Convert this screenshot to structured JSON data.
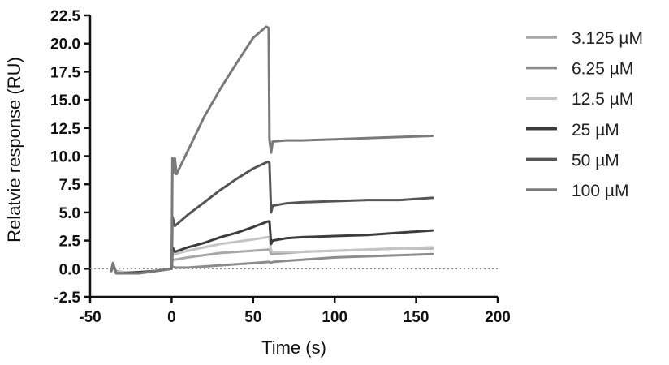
{
  "chart_data": {
    "type": "line",
    "title": "",
    "xlabel": "Time (s)",
    "ylabel": "Relatvie response (RU)",
    "xlim": [
      -50,
      200
    ],
    "ylim": [
      -2.5,
      22.5
    ],
    "xticks": [
      -50,
      0,
      50,
      100,
      150,
      200
    ],
    "yticks": [
      -2.5,
      0.0,
      2.5,
      5.0,
      7.5,
      10.0,
      12.5,
      15.0,
      17.5,
      20.0,
      22.5
    ],
    "xtick_labels": [
      "-50",
      "0",
      "50",
      "100",
      "150",
      "200"
    ],
    "ytick_labels": [
      "-2.5",
      "0.0",
      "2.5",
      "5.0",
      "7.5",
      "10.0",
      "12.5",
      "15.0",
      "17.5",
      "20.0",
      "22.5"
    ],
    "grid": false,
    "baseline": {
      "y": 0,
      "style": "dotted"
    },
    "legend": {
      "position": "right"
    },
    "series": [
      {
        "name": "3.125 µM",
        "color": "#a8a8a8",
        "x": [
          -37,
          -36,
          -34,
          -30,
          -20,
          -10,
          0,
          0.5,
          2,
          10,
          20,
          30,
          40,
          50,
          59,
          60,
          61,
          62,
          70,
          80,
          100,
          120,
          140,
          160
        ],
        "y": [
          -0.1,
          0.3,
          -0.2,
          -0.3,
          -0.3,
          -0.2,
          0.0,
          0.8,
          0.8,
          1.0,
          1.2,
          1.4,
          1.5,
          1.6,
          1.7,
          1.7,
          1.3,
          1.3,
          1.4,
          1.5,
          1.6,
          1.7,
          1.8,
          1.8
        ]
      },
      {
        "name": "6.25 µM",
        "color": "#8c8c8c",
        "x": [
          -37,
          -36,
          -34,
          -30,
          -20,
          -10,
          0,
          0.5,
          2,
          10,
          20,
          30,
          40,
          50,
          59,
          60,
          61,
          62,
          70,
          80,
          100,
          120,
          140,
          160
        ],
        "y": [
          -0.2,
          0.2,
          -0.3,
          -0.4,
          -0.4,
          -0.2,
          0.0,
          0.2,
          0.1,
          0.1,
          0.2,
          0.3,
          0.4,
          0.5,
          0.6,
          0.6,
          0.5,
          0.6,
          0.7,
          0.8,
          1.0,
          1.1,
          1.2,
          1.3
        ]
      },
      {
        "name": "12.5 µM",
        "color": "#c4c4c4",
        "x": [
          -37,
          -36,
          -34,
          -30,
          -20,
          -10,
          0,
          0.5,
          2,
          10,
          20,
          30,
          40,
          50,
          59,
          60,
          61,
          62,
          70,
          80,
          100,
          120,
          140,
          160
        ],
        "y": [
          -0.1,
          0.3,
          -0.3,
          -0.3,
          -0.3,
          -0.2,
          0.0,
          1.3,
          1.3,
          1.6,
          1.9,
          2.2,
          2.4,
          2.6,
          2.8,
          2.8,
          1.6,
          1.5,
          1.5,
          1.5,
          1.6,
          1.7,
          1.8,
          1.9
        ]
      },
      {
        "name": "25 µM",
        "color": "#3c3c3c",
        "x": [
          -37,
          -36,
          -34,
          -30,
          -20,
          -10,
          0,
          0.5,
          2,
          10,
          20,
          30,
          40,
          50,
          59,
          60,
          61,
          62,
          70,
          80,
          100,
          120,
          140,
          160
        ],
        "y": [
          -0.2,
          0.4,
          -0.4,
          -0.4,
          -0.3,
          -0.2,
          0.0,
          1.9,
          1.5,
          1.9,
          2.3,
          2.8,
          3.2,
          3.7,
          4.2,
          4.2,
          2.2,
          2.5,
          2.7,
          2.8,
          2.9,
          3.0,
          3.2,
          3.4
        ]
      },
      {
        "name": "50 µM",
        "color": "#555555",
        "x": [
          -37,
          -36,
          -34,
          -30,
          -20,
          -10,
          0,
          0.5,
          2,
          10,
          20,
          30,
          40,
          50,
          59,
          60,
          61,
          62,
          70,
          80,
          100,
          120,
          140,
          160
        ],
        "y": [
          -0.2,
          0.5,
          -0.4,
          -0.4,
          -0.4,
          -0.2,
          0.0,
          4.6,
          3.8,
          4.8,
          5.9,
          7.0,
          8.0,
          8.9,
          9.5,
          9.4,
          5.0,
          5.6,
          5.8,
          5.9,
          6.0,
          6.1,
          6.1,
          6.3
        ]
      },
      {
        "name": "100 µM",
        "color": "#7a7a7a",
        "x": [
          -37,
          -36,
          -34,
          -30,
          -20,
          -10,
          0,
          0.5,
          1,
          2,
          3,
          10,
          20,
          30,
          40,
          50,
          58,
          59.5,
          60,
          61,
          62,
          70,
          80,
          100,
          120,
          140,
          160
        ],
        "y": [
          -0.2,
          0.5,
          -0.4,
          -0.4,
          -0.4,
          -0.2,
          0.0,
          9.8,
          8.5,
          9.8,
          8.4,
          10.5,
          13.5,
          16.0,
          18.3,
          20.5,
          21.5,
          21.4,
          11.5,
          10.3,
          11.3,
          11.4,
          11.4,
          11.5,
          11.6,
          11.7,
          11.8
        ]
      }
    ]
  }
}
